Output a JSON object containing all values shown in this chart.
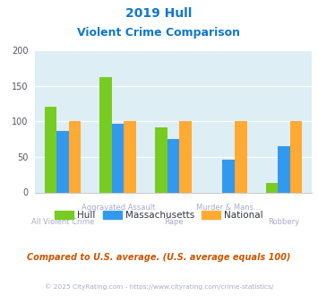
{
  "title_line1": "2019 Hull",
  "title_line2": "Violent Crime Comparison",
  "categories_top": [
    "",
    "Aggravated Assault",
    "",
    "Murder & Mans...",
    ""
  ],
  "categories_bottom": [
    "All Violent Crime",
    "",
    "Rape",
    "",
    "Robbery"
  ],
  "hull": [
    120,
    162,
    91,
    0,
    13
  ],
  "massachusetts": [
    86,
    97,
    75,
    46,
    65
  ],
  "national": [
    100,
    100,
    100,
    100,
    100
  ],
  "hull_color": "#77cc22",
  "mass_color": "#3399ee",
  "national_color": "#ffaa33",
  "bg_color": "#ddeef5",
  "ylim": [
    0,
    200
  ],
  "yticks": [
    0,
    50,
    100,
    150,
    200
  ],
  "title_color": "#1177cc",
  "xlabel_top_color": "#aaaacc",
  "xlabel_bottom_color": "#aaaacc",
  "note_text": "Compared to U.S. average. (U.S. average equals 100)",
  "note_color": "#cc5500",
  "footer_text": "© 2025 CityRating.com - https://www.cityrating.com/crime-statistics/",
  "footer_color": "#aaaacc",
  "legend_labels": [
    "Hull",
    "Massachusetts",
    "National"
  ],
  "legend_text_color": "#333344"
}
